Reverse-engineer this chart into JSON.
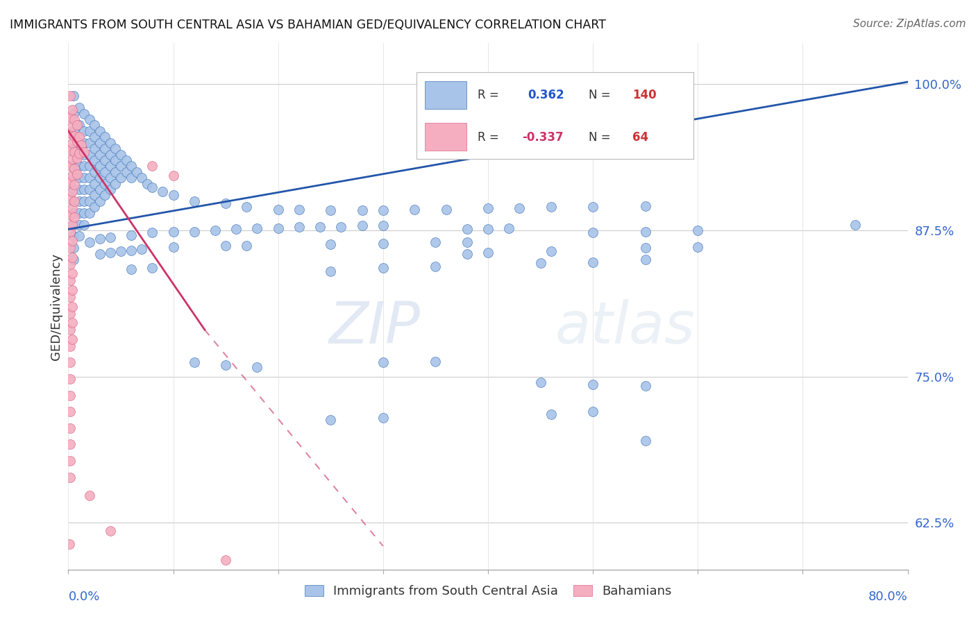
{
  "title": "IMMIGRANTS FROM SOUTH CENTRAL ASIA VS BAHAMIAN GED/EQUIVALENCY CORRELATION CHART",
  "source": "Source: ZipAtlas.com",
  "ylabel": "GED/Equivalency",
  "ytick_vals": [
    0.625,
    0.75,
    0.875,
    1.0
  ],
  "ytick_labels": [
    "62.5%",
    "75.0%",
    "87.5%",
    "100.0%"
  ],
  "xlim": [
    0.0,
    0.8
  ],
  "ylim": [
    0.585,
    1.035
  ],
  "blue_color": "#a8c4e8",
  "pink_color": "#f4aec0",
  "blue_edge_color": "#4477bb",
  "pink_edge_color": "#dd6688",
  "blue_line_color": "#2255aa",
  "pink_line_color": "#cc3366",
  "background_color": "#ffffff",
  "blue_scatter": [
    [
      0.005,
      0.99
    ],
    [
      0.005,
      0.975
    ],
    [
      0.005,
      0.96
    ],
    [
      0.005,
      0.945
    ],
    [
      0.005,
      0.93
    ],
    [
      0.005,
      0.92
    ],
    [
      0.005,
      0.91
    ],
    [
      0.005,
      0.9
    ],
    [
      0.005,
      0.89
    ],
    [
      0.005,
      0.88
    ],
    [
      0.005,
      0.87
    ],
    [
      0.005,
      0.86
    ],
    [
      0.005,
      0.85
    ],
    [
      0.01,
      0.98
    ],
    [
      0.01,
      0.965
    ],
    [
      0.01,
      0.95
    ],
    [
      0.01,
      0.94
    ],
    [
      0.01,
      0.93
    ],
    [
      0.01,
      0.92
    ],
    [
      0.01,
      0.91
    ],
    [
      0.01,
      0.9
    ],
    [
      0.01,
      0.89
    ],
    [
      0.01,
      0.88
    ],
    [
      0.01,
      0.87
    ],
    [
      0.015,
      0.975
    ],
    [
      0.015,
      0.96
    ],
    [
      0.015,
      0.95
    ],
    [
      0.015,
      0.94
    ],
    [
      0.015,
      0.93
    ],
    [
      0.015,
      0.92
    ],
    [
      0.015,
      0.91
    ],
    [
      0.015,
      0.9
    ],
    [
      0.015,
      0.89
    ],
    [
      0.015,
      0.88
    ],
    [
      0.02,
      0.97
    ],
    [
      0.02,
      0.96
    ],
    [
      0.02,
      0.95
    ],
    [
      0.02,
      0.94
    ],
    [
      0.02,
      0.93
    ],
    [
      0.02,
      0.92
    ],
    [
      0.02,
      0.91
    ],
    [
      0.02,
      0.9
    ],
    [
      0.02,
      0.89
    ],
    [
      0.025,
      0.965
    ],
    [
      0.025,
      0.955
    ],
    [
      0.025,
      0.945
    ],
    [
      0.025,
      0.935
    ],
    [
      0.025,
      0.925
    ],
    [
      0.025,
      0.915
    ],
    [
      0.025,
      0.905
    ],
    [
      0.025,
      0.895
    ],
    [
      0.03,
      0.96
    ],
    [
      0.03,
      0.95
    ],
    [
      0.03,
      0.94
    ],
    [
      0.03,
      0.93
    ],
    [
      0.03,
      0.92
    ],
    [
      0.03,
      0.91
    ],
    [
      0.03,
      0.9
    ],
    [
      0.035,
      0.955
    ],
    [
      0.035,
      0.945
    ],
    [
      0.035,
      0.935
    ],
    [
      0.035,
      0.925
    ],
    [
      0.035,
      0.915
    ],
    [
      0.035,
      0.905
    ],
    [
      0.04,
      0.95
    ],
    [
      0.04,
      0.94
    ],
    [
      0.04,
      0.93
    ],
    [
      0.04,
      0.92
    ],
    [
      0.04,
      0.91
    ],
    [
      0.045,
      0.945
    ],
    [
      0.045,
      0.935
    ],
    [
      0.045,
      0.925
    ],
    [
      0.045,
      0.915
    ],
    [
      0.05,
      0.94
    ],
    [
      0.05,
      0.93
    ],
    [
      0.05,
      0.92
    ],
    [
      0.055,
      0.935
    ],
    [
      0.055,
      0.925
    ],
    [
      0.06,
      0.93
    ],
    [
      0.06,
      0.92
    ],
    [
      0.065,
      0.925
    ],
    [
      0.07,
      0.92
    ],
    [
      0.075,
      0.915
    ],
    [
      0.08,
      0.912
    ],
    [
      0.09,
      0.908
    ],
    [
      0.1,
      0.905
    ],
    [
      0.12,
      0.9
    ],
    [
      0.15,
      0.898
    ],
    [
      0.17,
      0.895
    ],
    [
      0.2,
      0.893
    ],
    [
      0.22,
      0.893
    ],
    [
      0.25,
      0.892
    ],
    [
      0.28,
      0.892
    ],
    [
      0.3,
      0.892
    ],
    [
      0.33,
      0.893
    ],
    [
      0.36,
      0.893
    ],
    [
      0.4,
      0.894
    ],
    [
      0.43,
      0.894
    ],
    [
      0.46,
      0.895
    ],
    [
      0.5,
      0.895
    ],
    [
      0.55,
      0.896
    ],
    [
      0.38,
      0.876
    ],
    [
      0.4,
      0.876
    ],
    [
      0.42,
      0.877
    ],
    [
      0.18,
      0.877
    ],
    [
      0.2,
      0.877
    ],
    [
      0.22,
      0.878
    ],
    [
      0.24,
      0.878
    ],
    [
      0.26,
      0.878
    ],
    [
      0.28,
      0.879
    ],
    [
      0.3,
      0.879
    ],
    [
      0.16,
      0.876
    ],
    [
      0.14,
      0.875
    ],
    [
      0.12,
      0.874
    ],
    [
      0.1,
      0.874
    ],
    [
      0.08,
      0.873
    ],
    [
      0.06,
      0.871
    ],
    [
      0.04,
      0.869
    ],
    [
      0.03,
      0.868
    ],
    [
      0.02,
      0.865
    ],
    [
      0.03,
      0.855
    ],
    [
      0.04,
      0.856
    ],
    [
      0.05,
      0.857
    ],
    [
      0.06,
      0.858
    ],
    [
      0.07,
      0.859
    ],
    [
      0.1,
      0.861
    ],
    [
      0.25,
      0.863
    ],
    [
      0.3,
      0.864
    ],
    [
      0.35,
      0.865
    ],
    [
      0.38,
      0.865
    ],
    [
      0.15,
      0.862
    ],
    [
      0.17,
      0.862
    ],
    [
      0.38,
      0.855
    ],
    [
      0.4,
      0.856
    ],
    [
      0.46,
      0.857
    ],
    [
      0.5,
      0.873
    ],
    [
      0.55,
      0.874
    ],
    [
      0.6,
      0.875
    ],
    [
      0.55,
      0.86
    ],
    [
      0.6,
      0.861
    ],
    [
      0.55,
      0.85
    ],
    [
      0.5,
      0.848
    ],
    [
      0.45,
      0.847
    ],
    [
      0.06,
      0.842
    ],
    [
      0.08,
      0.843
    ],
    [
      0.3,
      0.843
    ],
    [
      0.35,
      0.844
    ],
    [
      0.25,
      0.84
    ],
    [
      0.12,
      0.762
    ],
    [
      0.15,
      0.76
    ],
    [
      0.18,
      0.758
    ],
    [
      0.3,
      0.762
    ],
    [
      0.35,
      0.763
    ],
    [
      0.45,
      0.745
    ],
    [
      0.5,
      0.743
    ],
    [
      0.55,
      0.742
    ],
    [
      0.5,
      0.72
    ],
    [
      0.46,
      0.718
    ],
    [
      0.3,
      0.715
    ],
    [
      0.25,
      0.713
    ],
    [
      0.55,
      0.695
    ],
    [
      0.75,
      0.88
    ]
  ],
  "pink_scatter": [
    [
      0.002,
      0.99
    ],
    [
      0.002,
      0.972
    ],
    [
      0.002,
      0.958
    ],
    [
      0.002,
      0.944
    ],
    [
      0.002,
      0.93
    ],
    [
      0.002,
      0.916
    ],
    [
      0.002,
      0.902
    ],
    [
      0.002,
      0.888
    ],
    [
      0.002,
      0.874
    ],
    [
      0.002,
      0.86
    ],
    [
      0.002,
      0.846
    ],
    [
      0.002,
      0.832
    ],
    [
      0.002,
      0.818
    ],
    [
      0.002,
      0.804
    ],
    [
      0.002,
      0.79
    ],
    [
      0.002,
      0.776
    ],
    [
      0.002,
      0.762
    ],
    [
      0.002,
      0.748
    ],
    [
      0.002,
      0.734
    ],
    [
      0.002,
      0.72
    ],
    [
      0.002,
      0.706
    ],
    [
      0.002,
      0.692
    ],
    [
      0.002,
      0.678
    ],
    [
      0.002,
      0.664
    ],
    [
      0.004,
      0.978
    ],
    [
      0.004,
      0.964
    ],
    [
      0.004,
      0.95
    ],
    [
      0.004,
      0.936
    ],
    [
      0.004,
      0.922
    ],
    [
      0.004,
      0.908
    ],
    [
      0.004,
      0.894
    ],
    [
      0.004,
      0.88
    ],
    [
      0.004,
      0.866
    ],
    [
      0.004,
      0.852
    ],
    [
      0.004,
      0.838
    ],
    [
      0.004,
      0.824
    ],
    [
      0.004,
      0.81
    ],
    [
      0.004,
      0.796
    ],
    [
      0.004,
      0.782
    ],
    [
      0.006,
      0.97
    ],
    [
      0.006,
      0.956
    ],
    [
      0.006,
      0.942
    ],
    [
      0.006,
      0.928
    ],
    [
      0.006,
      0.914
    ],
    [
      0.006,
      0.9
    ],
    [
      0.006,
      0.886
    ],
    [
      0.008,
      0.965
    ],
    [
      0.008,
      0.951
    ],
    [
      0.008,
      0.937
    ],
    [
      0.008,
      0.923
    ],
    [
      0.01,
      0.955
    ],
    [
      0.01,
      0.941
    ],
    [
      0.012,
      0.948
    ],
    [
      0.015,
      0.942
    ],
    [
      0.08,
      0.93
    ],
    [
      0.1,
      0.922
    ],
    [
      0.02,
      0.648
    ],
    [
      0.04,
      0.618
    ],
    [
      0.001,
      0.607
    ],
    [
      0.15,
      0.593
    ]
  ],
  "blue_trend": [
    0.0,
    0.8,
    0.876,
    1.002
  ],
  "pink_solid": [
    0.0,
    0.13,
    0.96,
    0.79
  ],
  "pink_dashed": [
    0.13,
    0.3,
    0.79,
    0.605
  ]
}
